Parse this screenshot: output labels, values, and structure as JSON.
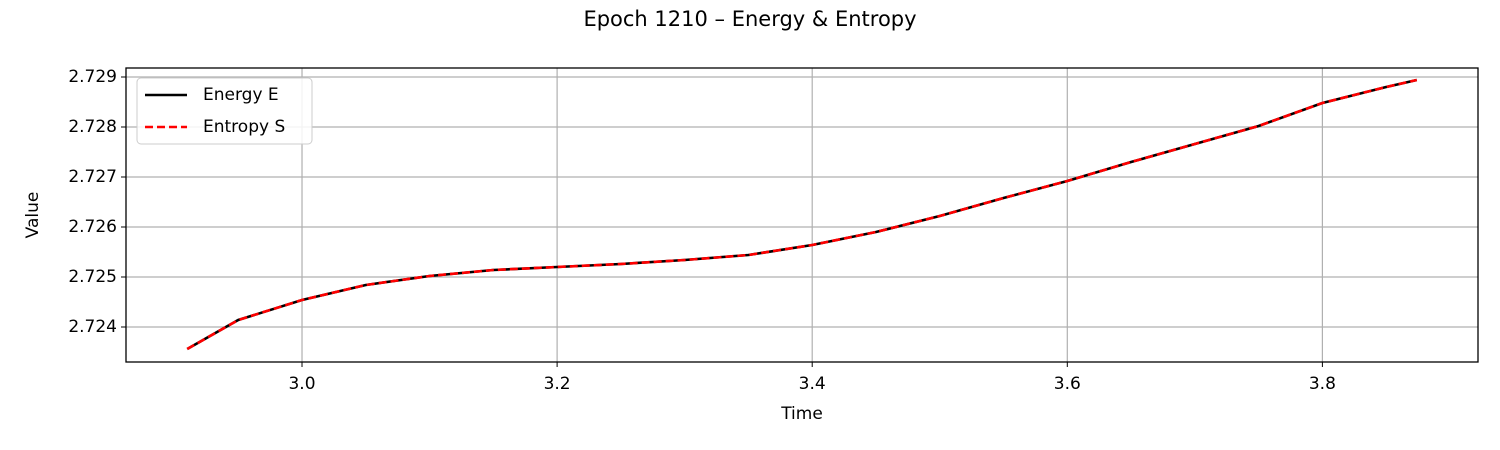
{
  "chart_data": {
    "type": "line",
    "title": "Epoch 1210 – Energy & Entropy",
    "x_label": "Time",
    "y_label": "Value",
    "x": [
      2.91,
      2.95,
      3.0,
      3.05,
      3.1,
      3.15,
      3.2,
      3.25,
      3.3,
      3.35,
      3.4,
      3.45,
      3.5,
      3.55,
      3.6,
      3.65,
      3.7,
      3.75,
      3.8,
      3.85,
      3.874
    ],
    "series": [
      {
        "name": "Energy E",
        "color": "#000000",
        "dash": "solid",
        "values": [
          2.72356,
          2.72414,
          2.72454,
          2.72484,
          2.72502,
          2.72514,
          2.7252,
          2.72526,
          2.72534,
          2.72544,
          2.72564,
          2.7259,
          2.72622,
          2.72658,
          2.72692,
          2.7273,
          2.72766,
          2.72802,
          2.72848,
          2.7288,
          2.72894
        ]
      },
      {
        "name": "Entropy S",
        "color": "#ff0000",
        "dash": "dashed",
        "values": [
          2.72356,
          2.72414,
          2.72454,
          2.72484,
          2.72502,
          2.72514,
          2.7252,
          2.72526,
          2.72534,
          2.72544,
          2.72564,
          2.7259,
          2.72622,
          2.72658,
          2.72692,
          2.7273,
          2.72766,
          2.72802,
          2.72848,
          2.7288,
          2.72894
        ]
      }
    ],
    "xlim": [
      2.862,
      3.922
    ],
    "xticks": [
      {
        "value": 3,
        "label": "3.0"
      },
      3.2,
      3.4,
      3.6,
      3.8
    ],
    "ylim": [
      2.7233,
      2.72918
    ],
    "yticks": [
      2.724,
      2.725,
      2.726,
      2.727,
      2.728,
      2.729
    ],
    "grid": true,
    "legend": "upper left"
  }
}
